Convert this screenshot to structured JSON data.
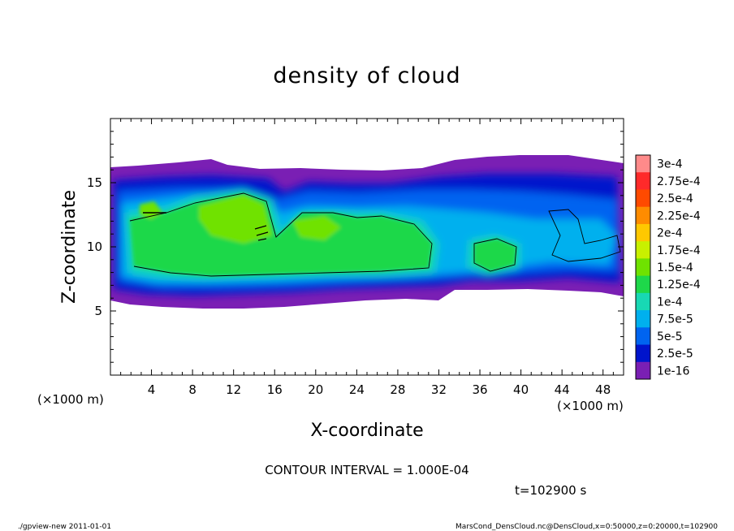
{
  "chart_data": {
    "type": "heatmap",
    "title": "density of cloud",
    "xlabel": "X-coordinate",
    "ylabel": "Z-coordinate",
    "x_unit_left": "(×1000 m)",
    "x_unit_right": "(×1000 m)",
    "xlim": [
      0,
      50
    ],
    "ylim": [
      0,
      20
    ],
    "x_ticks": [
      4,
      8,
      12,
      16,
      20,
      24,
      28,
      32,
      36,
      40,
      44,
      48
    ],
    "y_ticks": [
      5,
      10,
      15
    ],
    "colorbar": {
      "labels": [
        "3e-4",
        "2.75e-4",
        "2.5e-4",
        "2.25e-4",
        "2e-4",
        "1.75e-4",
        "1.5e-4",
        "1.25e-4",
        "1e-4",
        "7.5e-5",
        "5e-5",
        "2.5e-5",
        "1e-16"
      ],
      "colors": [
        "#ff8a8a",
        "#ff2a2a",
        "#ff4a00",
        "#ff8c00",
        "#ffc800",
        "#c8f000",
        "#6fe200",
        "#1ed84a",
        "#18d8b4",
        "#00b0ee",
        "#0064f0",
        "#0014cc",
        "#7a1fb4"
      ]
    },
    "cloud_band": {
      "z_bottom": 5.8,
      "z_top": 16.2
    },
    "contour_interval": "CONTOUR INTERVAL = 1.000E-04",
    "time_label": "t=102900 s",
    "footer_left": "./gpview-new  2011-01-01",
    "footer_right": "MarsCond_DensCloud.nc@DensCloud,x=0:50000,z=0:20000,t=102900"
  }
}
